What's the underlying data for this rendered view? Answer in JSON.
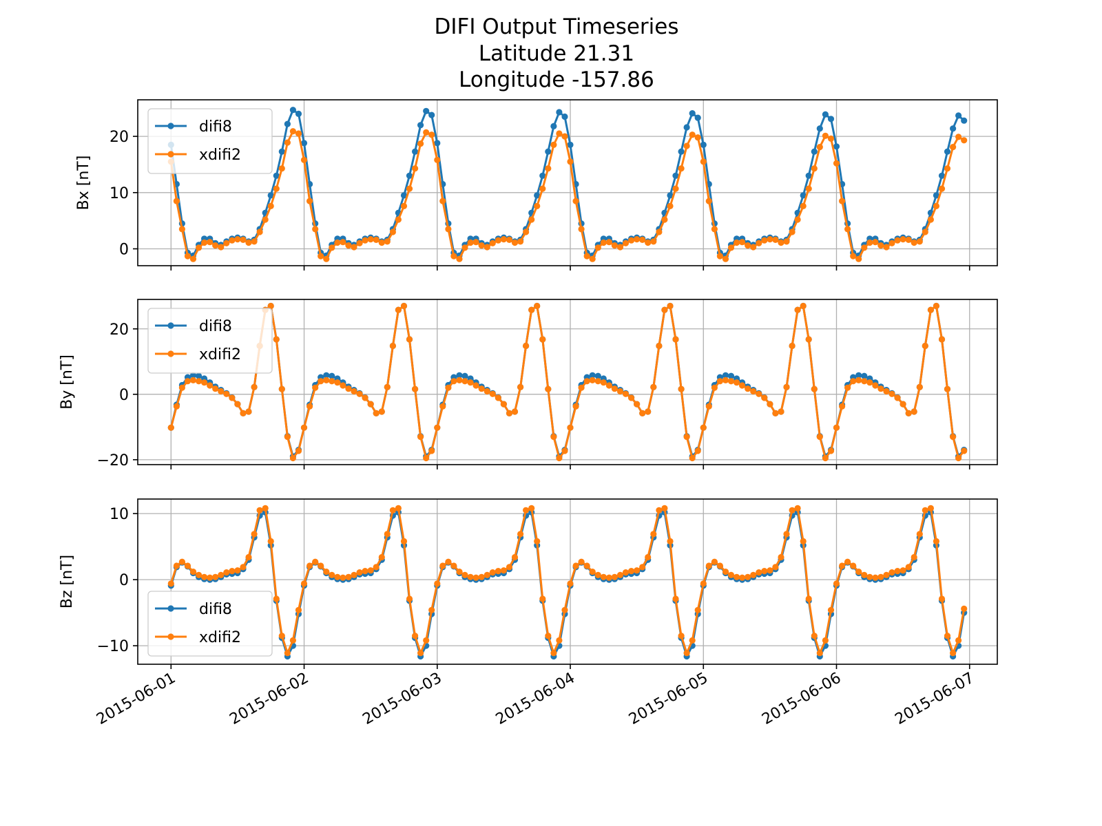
{
  "title_lines": [
    "DIFI Output Timeseries",
    "Latitude 21.31",
    "Longitude -157.86"
  ],
  "colors": {
    "difi8": "#1f77b4",
    "xdifi2": "#ff7f0e",
    "grid": "#b0b0b0",
    "axis": "#000000"
  },
  "x_tick_labels": [
    "2015-06-01",
    "2015-06-02",
    "2015-06-03",
    "2015-06-04",
    "2015-06-05",
    "2015-06-06",
    "2015-06-07"
  ],
  "chart_data": [
    {
      "type": "line",
      "ylabel": "Bx [nT]",
      "ylim": [
        -3,
        26.5
      ],
      "yticks": [
        0,
        10,
        20
      ],
      "ytick_labels": [
        "0",
        "10",
        "20"
      ],
      "xlim": [
        "2015-05-31T18:00",
        "2015-06-07T05:00"
      ],
      "x_start": "2015-06-01T00:00",
      "x_step_hours": 1,
      "grid": true,
      "legend": "upper left",
      "day_profiles": [
        [
          18.5,
          11.5,
          4.5,
          -0.7,
          -1.2,
          0.7,
          1.8,
          1.8,
          1.0,
          0.7,
          1.3,
          1.8,
          2.0,
          1.8,
          1.3,
          1.6,
          3.5,
          6.4,
          9.5,
          13.0,
          17.3,
          22.2,
          24.7,
          24.0
        ],
        [
          18.8,
          11.5,
          4.5,
          -0.7,
          -1.2,
          0.7,
          1.8,
          1.8,
          1.0,
          0.7,
          1.3,
          1.8,
          2.0,
          1.8,
          1.3,
          1.6,
          3.5,
          6.4,
          9.5,
          13.0,
          17.3,
          22.0,
          24.5,
          23.8
        ],
        [
          18.8,
          11.5,
          4.5,
          -0.7,
          -1.2,
          0.7,
          1.8,
          1.8,
          1.0,
          0.7,
          1.3,
          1.8,
          2.0,
          1.8,
          1.3,
          1.6,
          3.5,
          6.4,
          9.5,
          13.0,
          17.3,
          21.8,
          24.3,
          23.5
        ],
        [
          18.5,
          11.5,
          4.5,
          -0.7,
          -1.2,
          0.7,
          1.8,
          1.8,
          1.0,
          0.7,
          1.3,
          1.8,
          2.0,
          1.8,
          1.3,
          1.6,
          3.5,
          6.4,
          9.5,
          13.0,
          17.3,
          21.6,
          24.1,
          23.3
        ],
        [
          18.5,
          11.5,
          4.5,
          -0.7,
          -1.2,
          0.7,
          1.8,
          1.8,
          1.0,
          0.7,
          1.3,
          1.8,
          2.0,
          1.8,
          1.3,
          1.6,
          3.5,
          6.4,
          9.5,
          13.0,
          17.3,
          21.4,
          23.9,
          23.1
        ],
        [
          18.2,
          11.5,
          4.5,
          -0.7,
          -1.2,
          0.7,
          1.8,
          1.8,
          1.0,
          0.7,
          1.3,
          1.8,
          2.0,
          1.8,
          1.3,
          1.6,
          3.5,
          6.4,
          9.5,
          13.0,
          17.3,
          21.4,
          23.7,
          22.8
        ]
      ],
      "series": [
        {
          "name": "difi8",
          "offset": 0
        },
        {
          "name": "xdifi2",
          "offsets": [
            -3.0,
            -3.0,
            -1.0,
            -0.6,
            -0.6,
            -0.5,
            -0.7,
            -0.6,
            -0.4,
            -0.4,
            -0.3,
            -0.3,
            -0.3,
            -0.2,
            -0.2,
            -0.3,
            -0.5,
            -1.2,
            -1.9,
            -2.3,
            -3.0,
            -3.3,
            -3.8,
            -3.5
          ]
        }
      ]
    },
    {
      "type": "line",
      "ylabel": "By [nT]",
      "ylim": [
        -21.5,
        29
      ],
      "yticks": [
        -20,
        0,
        20
      ],
      "ytick_labels": [
        "−20",
        "0",
        "20"
      ],
      "xlim": [
        "2015-05-31T18:00",
        "2015-06-07T05:00"
      ],
      "x_start": "2015-06-01T00:00",
      "x_step_hours": 1,
      "grid": true,
      "legend": "upper left",
      "day_profiles": [
        [
          -10.2,
          -3.2,
          2.8,
          5.2,
          5.8,
          5.6,
          4.8,
          3.6,
          2.3,
          1.3,
          0.3,
          -1.0,
          -3.0,
          -5.8,
          -5.3,
          2.2,
          14.8,
          25.8,
          27.0,
          16.8,
          1.6,
          -12.8,
          -19.0,
          -17.0
        ],
        [
          -10.2,
          -3.2,
          2.8,
          5.2,
          5.8,
          5.6,
          4.8,
          3.6,
          2.3,
          1.3,
          0.3,
          -1.0,
          -3.0,
          -5.8,
          -5.3,
          2.2,
          14.8,
          25.8,
          27.0,
          16.8,
          1.6,
          -12.8,
          -19.0,
          -17.0
        ],
        [
          -10.2,
          -3.2,
          2.8,
          5.2,
          5.8,
          5.6,
          4.8,
          3.6,
          2.3,
          1.3,
          0.3,
          -1.0,
          -3.0,
          -5.8,
          -5.3,
          2.2,
          14.8,
          25.8,
          27.0,
          16.8,
          1.6,
          -12.8,
          -19.0,
          -17.0
        ],
        [
          -10.2,
          -3.2,
          2.8,
          5.2,
          5.8,
          5.6,
          4.8,
          3.6,
          2.3,
          1.3,
          0.3,
          -1.0,
          -3.0,
          -5.8,
          -5.3,
          2.2,
          14.8,
          25.8,
          27.0,
          16.8,
          1.6,
          -12.8,
          -19.0,
          -17.0
        ],
        [
          -10.2,
          -3.2,
          2.8,
          5.2,
          5.8,
          5.6,
          4.8,
          3.6,
          2.3,
          1.3,
          0.3,
          -1.0,
          -3.0,
          -5.8,
          -5.3,
          2.2,
          14.8,
          25.8,
          27.0,
          16.8,
          1.6,
          -12.8,
          -19.0,
          -17.0
        ],
        [
          -10.2,
          -3.2,
          2.8,
          5.2,
          5.8,
          5.6,
          4.8,
          3.6,
          2.3,
          1.3,
          0.3,
          -1.0,
          -3.0,
          -5.8,
          -5.3,
          2.2,
          14.8,
          25.8,
          27.0,
          16.8,
          1.6,
          -12.8,
          -19.0,
          -17.0
        ]
      ],
      "series": [
        {
          "name": "difi8",
          "offset": 0
        },
        {
          "name": "xdifi2",
          "offsets": [
            0,
            -0.5,
            -0.8,
            -1.2,
            -1.5,
            -1.6,
            -1.2,
            -0.9,
            -0.6,
            -0.4,
            -0.2,
            -0.1,
            0,
            0,
            0,
            0,
            0,
            0,
            0,
            0,
            0,
            -0.2,
            -0.5,
            -0.3
          ]
        }
      ]
    },
    {
      "type": "line",
      "ylabel": "Bz [nT]",
      "ylim": [
        -12.8,
        12.2
      ],
      "yticks": [
        -10,
        0,
        10
      ],
      "ytick_labels": [
        "−10",
        "0",
        "10"
      ],
      "xlim": [
        "2015-05-31T18:00",
        "2015-06-07T05:00"
      ],
      "x_start": "2015-06-01T00:00",
      "x_step_hours": 1,
      "grid": true,
      "legend": "lower left",
      "day_profiles": [
        [
          -0.9,
          1.9,
          2.6,
          2.0,
          1.0,
          0.4,
          0.1,
          0.0,
          0.1,
          0.4,
          0.8,
          0.9,
          1.0,
          1.6,
          3.0,
          6.4,
          9.7,
          10.2,
          5.2,
          -3.2,
          -8.8,
          -11.6,
          -10.0,
          -5.2
        ],
        [
          -0.9,
          1.9,
          2.6,
          2.0,
          1.0,
          0.4,
          0.1,
          0.0,
          0.1,
          0.4,
          0.8,
          0.9,
          1.0,
          1.6,
          3.0,
          6.4,
          9.7,
          10.2,
          5.2,
          -3.2,
          -8.8,
          -11.6,
          -10.0,
          -5.2
        ],
        [
          -0.9,
          1.9,
          2.6,
          2.0,
          1.0,
          0.4,
          0.1,
          0.0,
          0.1,
          0.4,
          0.8,
          0.9,
          1.0,
          1.6,
          3.0,
          6.4,
          9.7,
          10.2,
          5.2,
          -3.2,
          -8.8,
          -11.6,
          -10.0,
          -5.2
        ],
        [
          -0.9,
          1.9,
          2.6,
          2.0,
          1.0,
          0.4,
          0.1,
          0.0,
          0.1,
          0.4,
          0.8,
          0.9,
          1.0,
          1.6,
          3.0,
          6.4,
          9.7,
          10.2,
          5.2,
          -3.2,
          -8.8,
          -11.6,
          -10.0,
          -5.2
        ],
        [
          -0.9,
          1.9,
          2.6,
          2.0,
          1.0,
          0.4,
          0.1,
          0.0,
          0.1,
          0.4,
          0.8,
          0.9,
          1.0,
          1.6,
          3.0,
          6.4,
          9.7,
          10.2,
          5.2,
          -3.2,
          -8.8,
          -11.6,
          -10.0,
          -5.2
        ],
        [
          -0.9,
          1.9,
          2.6,
          2.0,
          1.0,
          0.4,
          0.1,
          0.0,
          0.1,
          0.4,
          0.8,
          0.9,
          1.0,
          1.6,
          3.0,
          6.4,
          9.7,
          10.2,
          5.2,
          -3.2,
          -8.8,
          -11.6,
          -10.0,
          -5.0
        ]
      ],
      "series": [
        {
          "name": "difi8",
          "offset": 0
        },
        {
          "name": "xdifi2",
          "offsets": [
            0.3,
            0.2,
            0.1,
            0.1,
            0.2,
            0.3,
            0.3,
            0.3,
            0.3,
            0.3,
            0.3,
            0.4,
            0.4,
            0.3,
            0.4,
            0.5,
            0.8,
            0.6,
            0.6,
            0.3,
            0.3,
            0.5,
            0.8,
            0.6
          ]
        }
      ]
    }
  ]
}
